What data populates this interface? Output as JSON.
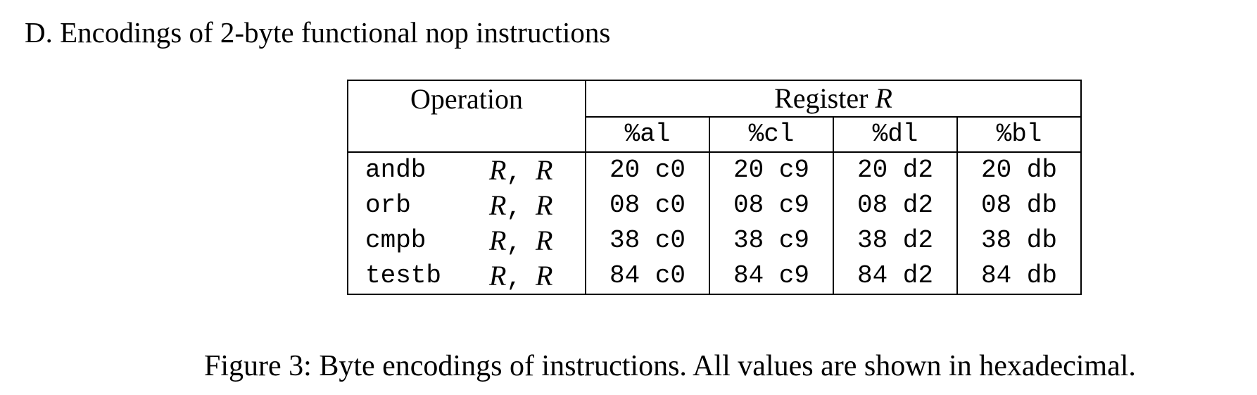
{
  "section_title": "D. Encodings of 2-byte functional nop instructions",
  "table": {
    "operation_header": "Operation",
    "register_header_text": "Register",
    "register_header_var": "R",
    "registers": [
      "%al",
      "%cl",
      "%dl",
      "%bl"
    ],
    "rows": [
      {
        "mnemonic": "andb",
        "op1": "R",
        "comma": ",",
        "op2": "R",
        "codes": [
          "20 c0",
          "20 c9",
          "20 d2",
          "20 db"
        ]
      },
      {
        "mnemonic": "orb",
        "op1": "R",
        "comma": ",",
        "op2": "R",
        "codes": [
          "08 c0",
          "08 c9",
          "08 d2",
          "08 db"
        ]
      },
      {
        "mnemonic": "cmpb",
        "op1": "R",
        "comma": ",",
        "op2": "R",
        "codes": [
          "38 c0",
          "38 c9",
          "38 d2",
          "38 db"
        ]
      },
      {
        "mnemonic": "testb",
        "op1": "R",
        "comma": ",",
        "op2": "R",
        "codes": [
          "84 c0",
          "84 c9",
          "84 d2",
          "84 db"
        ]
      }
    ]
  },
  "caption": "Figure 3: Byte encodings of instructions. All values are shown in hexadecimal."
}
